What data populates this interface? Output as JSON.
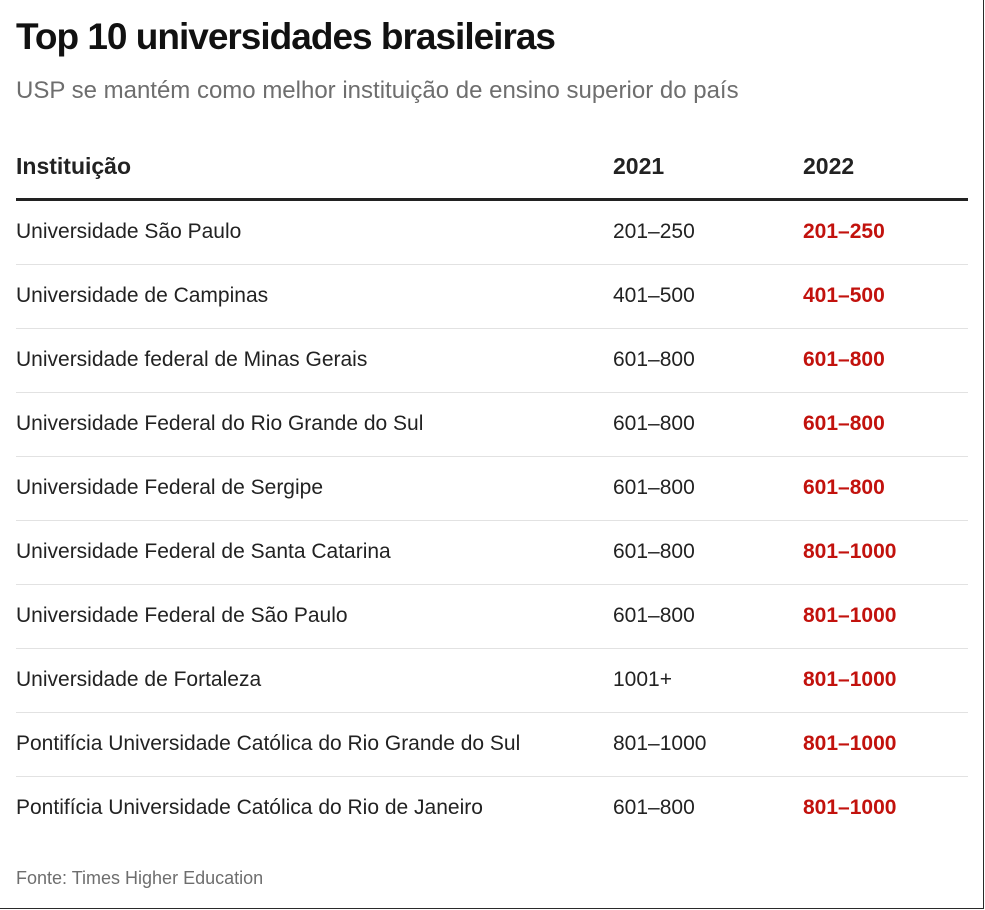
{
  "chart_data": {
    "type": "table",
    "title": "Top 10 universidades brasileiras",
    "subtitle": "USP se mantém como melhor instituição de ensino superior do país",
    "columns": [
      "Instituição",
      "2021",
      "2022"
    ],
    "rows": [
      {
        "name": "Universidade São Paulo",
        "y2021": "201–250",
        "y2022": "201–250"
      },
      {
        "name": "Universidade de Campinas",
        "y2021": "401–500",
        "y2022": "401–500"
      },
      {
        "name": "Universidade federal de Minas Gerais",
        "y2021": "601–800",
        "y2022": "601–800"
      },
      {
        "name": "Universidade Federal do Rio Grande do Sul",
        "y2021": "601–800",
        "y2022": "601–800"
      },
      {
        "name": "Universidade Federal de Sergipe",
        "y2021": "601–800",
        "y2022": "601–800"
      },
      {
        "name": "Universidade Federal de Santa Catarina",
        "y2021": "601–800",
        "y2022": "801–1000"
      },
      {
        "name": "Universidade Federal de São Paulo",
        "y2021": "601–800",
        "y2022": "801–1000"
      },
      {
        "name": "Universidade de Fortaleza",
        "y2021": "1001+",
        "y2022": "801–1000"
      },
      {
        "name": "Pontifícia Universidade Católica do Rio Grande do Sul",
        "y2021": "801–1000",
        "y2022": "801–1000"
      },
      {
        "name": "Pontifícia Universidade Católica do Rio de Janeiro",
        "y2021": "601–800",
        "y2022": "801–1000"
      }
    ],
    "source": "Fonte: Times Higher Education",
    "highlight_color": "#c2120d"
  }
}
